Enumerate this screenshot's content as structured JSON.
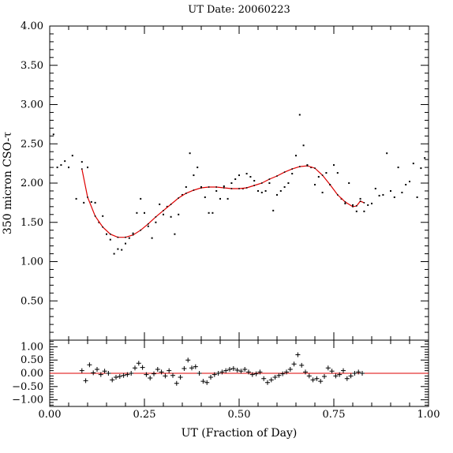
{
  "chart_data": {
    "type": "scatter",
    "title": "UT Date: 20060223",
    "xlabel": "UT (Fraction of Day)",
    "ylabel": "350 micron CSO-τ",
    "xlim": [
      0,
      1
    ],
    "ylim": [
      0,
      4
    ],
    "x_ticks": [
      "0.00",
      "0.25",
      "0.50",
      "0.75",
      "1.00"
    ],
    "x_tick_values": [
      0,
      0.25,
      0.5,
      0.75,
      1.0
    ],
    "y_ticks": [
      "0.50",
      "1.00",
      "1.50",
      "2.00",
      "2.50",
      "3.00",
      "3.50",
      "4.00"
    ],
    "y_tick_values": [
      0.5,
      1.0,
      1.5,
      2.0,
      2.5,
      3.0,
      3.5,
      4.0
    ],
    "grid": false,
    "colors": {
      "fit": "#dd0000",
      "points": "#000000",
      "axes": "#000000"
    },
    "series": [
      {
        "type": "scatter",
        "marker": "dot",
        "x": [
          0.01,
          0.02,
          0.03,
          0.04,
          0.05,
          0.06,
          0.07,
          0.085,
          0.09,
          0.1,
          0.11,
          0.12,
          0.13,
          0.14,
          0.15,
          0.16,
          0.17,
          0.18,
          0.19,
          0.2,
          0.21,
          0.22,
          0.23,
          0.24,
          0.25,
          0.26,
          0.27,
          0.28,
          0.29,
          0.3,
          0.31,
          0.32,
          0.33,
          0.34,
          0.35,
          0.36,
          0.37,
          0.38,
          0.39,
          0.4,
          0.41,
          0.42,
          0.43,
          0.44,
          0.45,
          0.46,
          0.47,
          0.48,
          0.49,
          0.5,
          0.51,
          0.52,
          0.53,
          0.54,
          0.55,
          0.56,
          0.57,
          0.58,
          0.59,
          0.6,
          0.61,
          0.62,
          0.63,
          0.64,
          0.65,
          0.66,
          0.67,
          0.68,
          0.69,
          0.7,
          0.71,
          0.72,
          0.73,
          0.74,
          0.75,
          0.76,
          0.77,
          0.78,
          0.79,
          0.8,
          0.81,
          0.82,
          0.83,
          0.84,
          0.85,
          0.86,
          0.87,
          0.88,
          0.89,
          0.9,
          0.91,
          0.92,
          0.93,
          0.94,
          0.95,
          0.96,
          0.97,
          0.98,
          0.99
        ],
        "y": [
          2.62,
          2.2,
          2.23,
          2.28,
          2.2,
          2.35,
          1.8,
          2.27,
          1.75,
          2.2,
          1.76,
          1.75,
          1.5,
          1.58,
          1.35,
          1.28,
          1.1,
          1.16,
          1.15,
          1.23,
          1.3,
          1.36,
          1.62,
          1.8,
          1.62,
          1.45,
          1.3,
          1.5,
          1.73,
          1.6,
          1.7,
          1.57,
          1.35,
          1.6,
          1.85,
          1.95,
          2.38,
          2.1,
          2.2,
          1.95,
          1.82,
          1.62,
          1.62,
          1.9,
          1.8,
          1.96,
          1.8,
          2.0,
          2.05,
          2.1,
          1.93,
          2.12,
          2.08,
          2.03,
          1.9,
          1.88,
          1.9,
          2.0,
          1.65,
          1.85,
          1.9,
          1.95,
          2.0,
          2.12,
          2.35,
          2.87,
          2.48,
          2.23,
          2.2,
          1.98,
          2.08,
          1.88,
          2.13,
          1.98,
          2.23,
          2.13,
          1.8,
          1.74,
          2.0,
          1.72,
          1.64,
          1.8,
          1.64,
          1.72,
          1.74,
          1.93,
          1.84,
          1.85,
          2.38,
          1.9,
          1.82,
          2.2,
          1.88,
          1.98,
          2.02,
          2.25,
          1.82,
          2.19,
          2.32
        ]
      },
      {
        "type": "line",
        "x": [
          0.085,
          0.1,
          0.12,
          0.14,
          0.16,
          0.18,
          0.2,
          0.22,
          0.24,
          0.26,
          0.28,
          0.3,
          0.32,
          0.34,
          0.36,
          0.38,
          0.4,
          0.42,
          0.44,
          0.46,
          0.48,
          0.5,
          0.52,
          0.54,
          0.56,
          0.58,
          0.6,
          0.62,
          0.64,
          0.66,
          0.68,
          0.7,
          0.72,
          0.74,
          0.76,
          0.78,
          0.8,
          0.81,
          0.82,
          0.83
        ],
        "y": [
          2.18,
          1.82,
          1.58,
          1.44,
          1.35,
          1.31,
          1.31,
          1.34,
          1.4,
          1.48,
          1.57,
          1.65,
          1.73,
          1.81,
          1.87,
          1.91,
          1.94,
          1.95,
          1.95,
          1.94,
          1.93,
          1.93,
          1.94,
          1.97,
          2.0,
          2.05,
          2.09,
          2.14,
          2.18,
          2.21,
          2.22,
          2.19,
          2.1,
          1.98,
          1.85,
          1.76,
          1.7,
          1.71,
          1.77,
          1.75
        ]
      }
    ],
    "residuals": {
      "type": "scatter",
      "marker": "plus",
      "ylim": [
        -1.25,
        1.25
      ],
      "y_ticks": [
        "1.00",
        "0.50",
        "0.00",
        "−0.50",
        "−1.00"
      ],
      "y_tick_values": [
        1.0,
        0.5,
        0.0,
        -0.5,
        -1.0
      ],
      "zero_line": 0,
      "x": [
        0.085,
        0.095,
        0.105,
        0.115,
        0.125,
        0.135,
        0.145,
        0.155,
        0.165,
        0.175,
        0.185,
        0.195,
        0.205,
        0.215,
        0.225,
        0.235,
        0.245,
        0.255,
        0.265,
        0.275,
        0.285,
        0.295,
        0.305,
        0.315,
        0.325,
        0.335,
        0.345,
        0.355,
        0.365,
        0.375,
        0.385,
        0.395,
        0.405,
        0.415,
        0.425,
        0.435,
        0.445,
        0.455,
        0.465,
        0.475,
        0.485,
        0.495,
        0.505,
        0.515,
        0.525,
        0.535,
        0.545,
        0.555,
        0.565,
        0.575,
        0.585,
        0.595,
        0.605,
        0.615,
        0.625,
        0.635,
        0.645,
        0.655,
        0.665,
        0.675,
        0.685,
        0.695,
        0.705,
        0.715,
        0.725,
        0.735,
        0.745,
        0.755,
        0.765,
        0.775,
        0.785,
        0.795,
        0.805,
        0.815,
        0.825
      ],
      "y": [
        0.1,
        -0.28,
        0.32,
        0.02,
        0.15,
        -0.05,
        0.08,
        0.0,
        -0.25,
        -0.15,
        -0.12,
        -0.08,
        -0.05,
        0.0,
        0.2,
        0.38,
        0.22,
        -0.05,
        -0.18,
        -0.02,
        0.15,
        0.05,
        -0.1,
        0.1,
        -0.08,
        -0.38,
        -0.15,
        0.18,
        0.5,
        0.2,
        0.25,
        0.0,
        -0.3,
        -0.35,
        -0.15,
        -0.05,
        0.0,
        0.05,
        0.1,
        0.15,
        0.18,
        0.12,
        0.08,
        0.15,
        0.05,
        -0.05,
        -0.02,
        0.05,
        -0.2,
        -0.35,
        -0.25,
        -0.15,
        -0.08,
        -0.02,
        0.05,
        0.15,
        0.35,
        0.7,
        0.3,
        0.05,
        -0.1,
        -0.25,
        -0.2,
        -0.3,
        -0.12,
        0.2,
        0.08,
        -0.1,
        -0.05,
        0.1,
        -0.2,
        -0.1,
        0.0,
        0.05,
        0.0
      ]
    }
  }
}
